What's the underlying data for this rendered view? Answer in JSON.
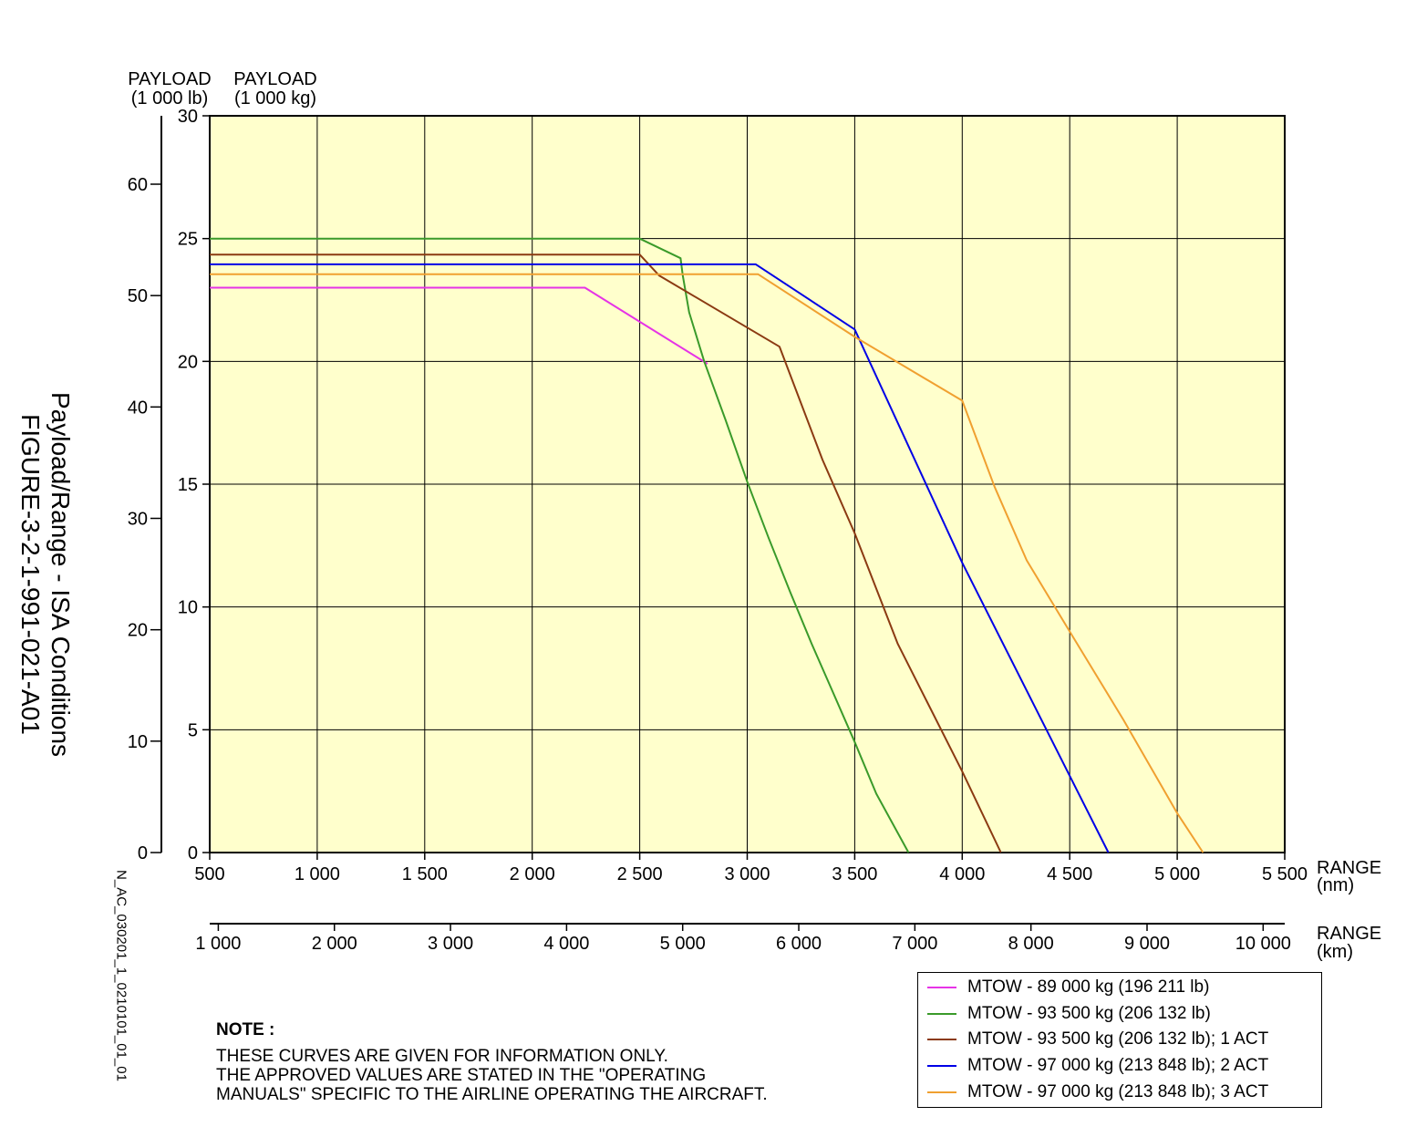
{
  "figure": {
    "title_line1": "Payload/Range - ISA Conditions",
    "title_line2": "FIGURE-3-2-1-991-021-A01",
    "file_ref": "N_AC_030201_1_0210101_01_01"
  },
  "note": {
    "title": "NOTE :",
    "lines": [
      "THESE CURVES ARE GIVEN FOR INFORMATION ONLY.",
      "THE APPROVED VALUES ARE STATED IN THE \"OPERATING",
      "MANUALS\" SPECIFIC TO THE AIRLINE OPERATING THE AIRCRAFT."
    ]
  },
  "colors": {
    "plot_bg": "#ffffcc",
    "grid": "#000000"
  },
  "chart_data": {
    "type": "line",
    "axes": {
      "y_kg": {
        "label_line1": "PAYLOAD",
        "label_line2": "(1 000 kg)",
        "ylim": [
          0,
          30
        ],
        "ticks": [
          0,
          5,
          10,
          15,
          20,
          25,
          30
        ],
        "tick_labels": [
          "0",
          "5",
          "10",
          "15",
          "20",
          "25",
          "30"
        ]
      },
      "y_lb": {
        "label_line1": "PAYLOAD",
        "label_line2": "(1 000 lb)",
        "ylim": [
          0,
          66.14
        ],
        "ticks": [
          0,
          10,
          20,
          30,
          40,
          50,
          60
        ],
        "tick_labels": [
          "0",
          "10",
          "20",
          "30",
          "40",
          "50",
          "60"
        ]
      },
      "x_nm": {
        "label_line1": "RANGE",
        "label_line2": "(nm)",
        "xlim": [
          500,
          5500
        ],
        "ticks": [
          500,
          1000,
          1500,
          2000,
          2500,
          3000,
          3500,
          4000,
          4500,
          5000,
          5500
        ],
        "tick_labels": [
          "500",
          "1 000",
          "1 500",
          "2 000",
          "2 500",
          "3 000",
          "3 500",
          "4 000",
          "4 500",
          "5 000",
          "5 500"
        ]
      },
      "x_km": {
        "label_line1": "RANGE",
        "label_line2": "(km)",
        "xlim": [
          926,
          10186
        ],
        "ticks": [
          1000,
          2000,
          3000,
          4000,
          5000,
          6000,
          7000,
          8000,
          9000,
          10000
        ],
        "tick_labels": [
          "1 000",
          "2 000",
          "3 000",
          "4 000",
          "5 000",
          "6 000",
          "7 000",
          "8 000",
          "9 000",
          "10 000"
        ]
      }
    },
    "grid": true,
    "legend_position": "bottom-right",
    "series": [
      {
        "name": "MTOW - 89 000 kg (196 211 lb)",
        "color": "#e633e6",
        "x": [
          500,
          2245,
          2815
        ],
        "y": [
          23.0,
          23.0,
          19.9
        ]
      },
      {
        "name": "MTOW - 93 500 kg (206 132 lb)",
        "color": "#3a9a2a",
        "x": [
          500,
          2500,
          2690,
          2700,
          2730,
          2800,
          2900,
          3000,
          3100,
          3200,
          3300,
          3400,
          3500,
          3600,
          3750
        ],
        "y": [
          25.0,
          25.0,
          24.2,
          23.5,
          22.0,
          20.0,
          17.6,
          15.1,
          12.8,
          10.6,
          8.5,
          6.5,
          4.5,
          2.4,
          0
        ]
      },
      {
        "name": "MTOW - 93 500 kg (206 132 lb); 1 ACT",
        "color": "#8b3a12",
        "x": [
          500,
          2500,
          2590,
          3150,
          3350,
          3500,
          3700,
          4000,
          4180
        ],
        "y": [
          24.35,
          24.35,
          23.5,
          20.6,
          16.0,
          13.0,
          8.5,
          3.3,
          0
        ]
      },
      {
        "name": "MTOW - 97 000 kg (213 848 lb); 2 ACT",
        "color": "#0000e6",
        "x": [
          500,
          3040,
          3500,
          4000,
          4680
        ],
        "y": [
          23.95,
          23.95,
          21.3,
          11.8,
          0
        ]
      },
      {
        "name": "MTOW - 97 000 kg (213 848 lb); 3 ACT",
        "color": "#f0a030",
        "x": [
          500,
          3050,
          3500,
          4000,
          4150,
          4300,
          4500,
          4750,
          5000,
          5120
        ],
        "y": [
          23.55,
          23.55,
          21.0,
          18.4,
          14.9,
          11.9,
          9.0,
          5.4,
          1.6,
          0
        ]
      }
    ]
  }
}
